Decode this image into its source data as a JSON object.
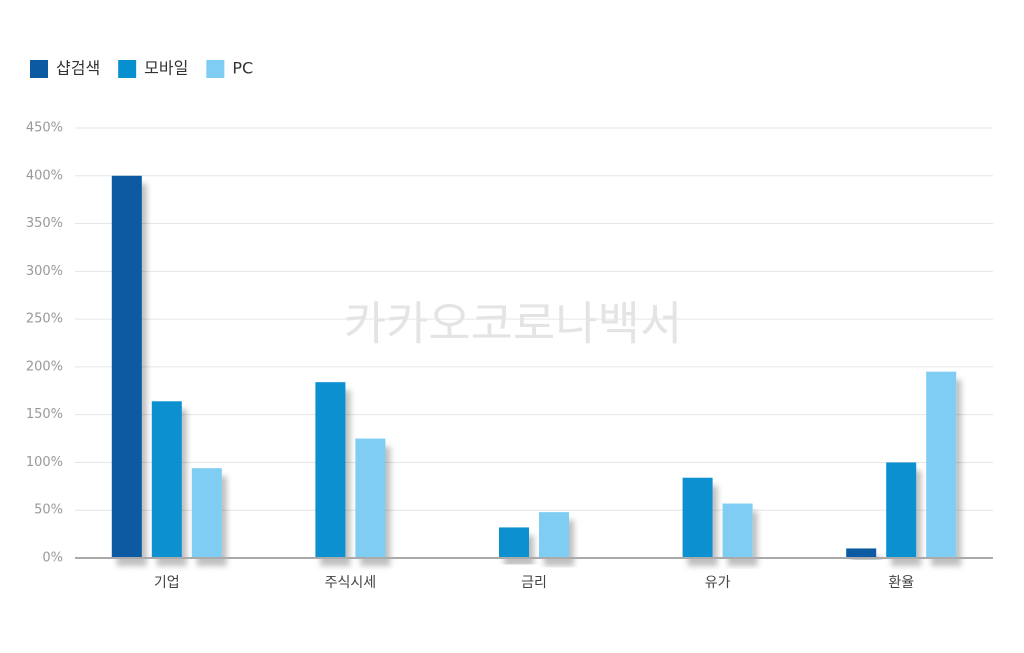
{
  "chart_data": {
    "type": "bar",
    "watermark": "카카오코로나백서",
    "categories": [
      "기업",
      "주식시세",
      "금리",
      "유가",
      "환율"
    ],
    "series": [
      {
        "name": "샵검색",
        "color": "#0b5aa2",
        "values": [
          400,
          null,
          null,
          null,
          10
        ]
      },
      {
        "name": "모바일",
        "color": "#0790cf",
        "values": [
          164,
          184,
          32,
          84,
          100
        ]
      },
      {
        "name": "PC",
        "color": "#7fcdf2",
        "values": [
          94,
          125,
          48,
          57,
          195
        ]
      }
    ],
    "ylim": [
      0,
      450
    ],
    "yticks": [
      {
        "value": 0,
        "label": "0%"
      },
      {
        "value": 50,
        "label": "50%"
      },
      {
        "value": 100,
        "label": "100%"
      },
      {
        "value": 150,
        "label": "150%"
      },
      {
        "value": 200,
        "label": "200%"
      },
      {
        "value": 250,
        "label": "250%"
      },
      {
        "value": 300,
        "label": "300%"
      },
      {
        "value": 350,
        "label": "350%"
      },
      {
        "value": 400,
        "label": "400%"
      },
      {
        "value": 450,
        "label": "450%"
      }
    ],
    "grid": true
  }
}
